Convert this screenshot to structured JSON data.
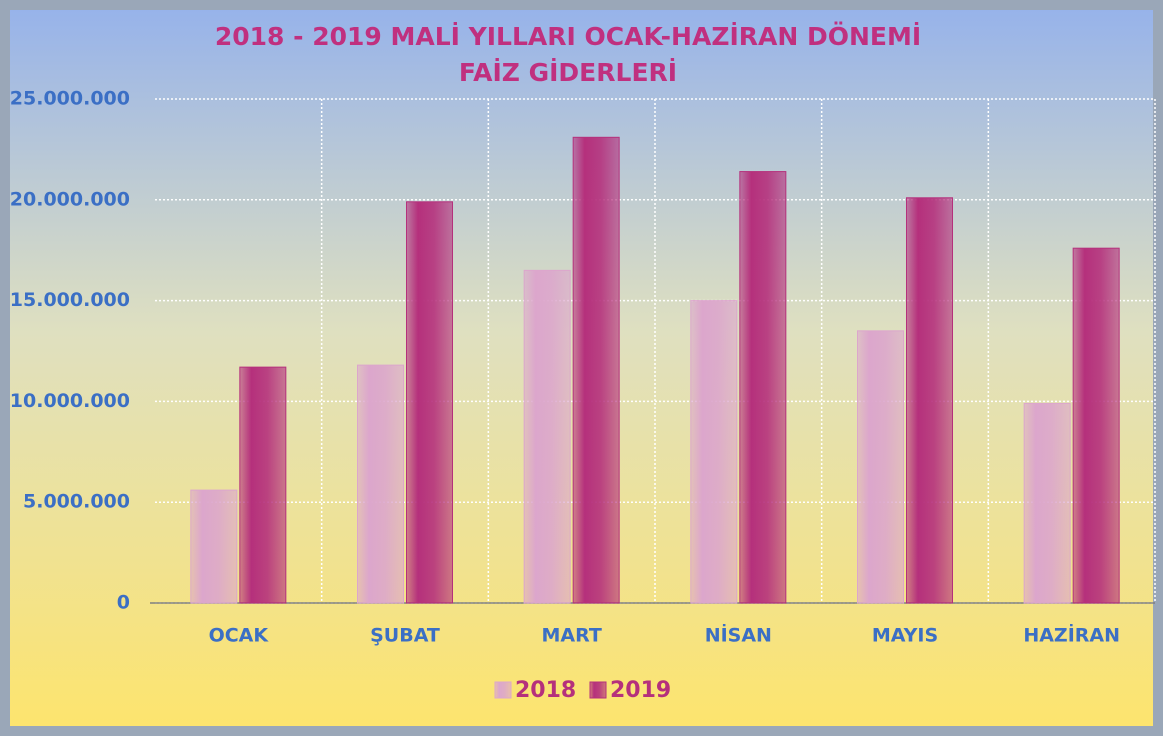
{
  "chart_data": {
    "type": "bar",
    "title": [
      "2018 - 2019  MALİ YILLARI OCAK-HAZİRAN DÖNEMİ",
      "FAİZ GİDERLERİ"
    ],
    "categories": [
      "OCAK",
      "ŞUBAT",
      "MART",
      "NİSAN",
      "MAYIS",
      "HAZİRAN"
    ],
    "series": [
      {
        "name": "2018",
        "color": "#dca6cc",
        "values": [
          5600000,
          11800000,
          16500000,
          15000000,
          13500000,
          9900000
        ]
      },
      {
        "name": "2019",
        "color": "#b5307c",
        "values": [
          11700000,
          19900000,
          23100000,
          21400000,
          20100000,
          17600000
        ]
      }
    ],
    "ylim": [
      0,
      25000000
    ],
    "yticks": [
      0,
      {
        "value": 5000000,
        "label": "5.000.000"
      },
      {
        "value": 10000000,
        "label": "10.000.000"
      },
      {
        "value": 15000000,
        "label": "15.000.000"
      },
      {
        "value": 20000000,
        "label": "20.000.000"
      },
      {
        "value": 25000000,
        "label": "25.000.000"
      }
    ],
    "grid": true,
    "legend": "bottom"
  }
}
